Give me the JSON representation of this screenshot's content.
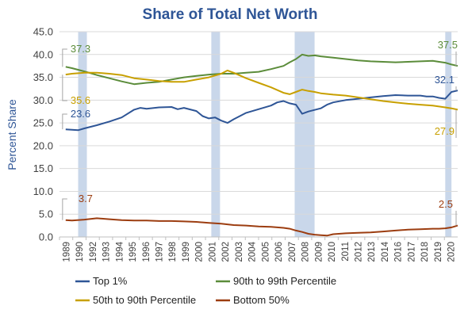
{
  "chart_data": {
    "type": "line",
    "title": "Share of Total Net Worth",
    "ylabel": "Percent Share",
    "xlabel": "",
    "ylim": [
      0,
      45
    ],
    "yticks": [
      "0.0",
      "5.0",
      "10.0",
      "15.0",
      "20.0",
      "25.0",
      "30.0",
      "35.0",
      "40.0",
      "45.0"
    ],
    "xlim": [
      1989.0,
      2021.0
    ],
    "xticks": [
      "1989",
      "1990",
      "1992",
      "1993",
      "1994",
      "1995",
      "1996",
      "1997",
      "1998",
      "1999",
      "2000",
      "2001",
      "2002",
      "2003",
      "2004",
      "2005",
      "2006",
      "2007",
      "2008",
      "2009",
      "2010",
      "2011",
      "2012",
      "2013",
      "2014",
      "2016",
      "2017",
      "2018",
      "2019",
      "2020"
    ],
    "grid": "horizontal",
    "legend_position": "bottom",
    "recessions": [
      [
        1990.5,
        1991.2
      ],
      [
        2001.2,
        2001.9
      ],
      [
        2007.9,
        2009.5
      ],
      [
        2020.0,
        2020.5
      ]
    ],
    "series": [
      {
        "name": "Top 1%",
        "color": "#2e5596",
        "points": [
          [
            1989.5,
            23.6
          ],
          [
            1990,
            23.5
          ],
          [
            1990.5,
            23.4
          ],
          [
            1991,
            23.8
          ],
          [
            1992,
            24.5
          ],
          [
            1993,
            25.3
          ],
          [
            1994,
            26.2
          ],
          [
            1995,
            27.9
          ],
          [
            1995.5,
            28.3
          ],
          [
            1996,
            28.1
          ],
          [
            1997,
            28.4
          ],
          [
            1998,
            28.5
          ],
          [
            1998.5,
            28.0
          ],
          [
            1999,
            28.3
          ],
          [
            2000,
            27.6
          ],
          [
            2000.5,
            26.5
          ],
          [
            2001,
            26.0
          ],
          [
            2001.5,
            26.2
          ],
          [
            2002,
            25.5
          ],
          [
            2002.5,
            25.0
          ],
          [
            2003,
            25.8
          ],
          [
            2004,
            27.2
          ],
          [
            2005,
            28.0
          ],
          [
            2006,
            28.8
          ],
          [
            2006.5,
            29.5
          ],
          [
            2007,
            29.8
          ],
          [
            2007.5,
            29.3
          ],
          [
            2008,
            29.0
          ],
          [
            2008.5,
            27.0
          ],
          [
            2009,
            27.5
          ],
          [
            2010,
            28.2
          ],
          [
            2010.5,
            29.0
          ],
          [
            2011,
            29.5
          ],
          [
            2012,
            30.0
          ],
          [
            2013,
            30.3
          ],
          [
            2014,
            30.6
          ],
          [
            2015,
            30.9
          ],
          [
            2016,
            31.1
          ],
          [
            2017,
            31.0
          ],
          [
            2018,
            31.0
          ],
          [
            2018.5,
            30.8
          ],
          [
            2019,
            30.8
          ],
          [
            2019.5,
            30.5
          ],
          [
            2020,
            30.3
          ],
          [
            2020.5,
            31.8
          ],
          [
            2021,
            32.1
          ]
        ]
      },
      {
        "name": "90th to 99th Percentile",
        "color": "#5b8c3a",
        "points": [
          [
            1989.5,
            37.3
          ],
          [
            1990,
            37.0
          ],
          [
            1991,
            36.3
          ],
          [
            1992,
            35.5
          ],
          [
            1993,
            34.8
          ],
          [
            1994,
            34.1
          ],
          [
            1995,
            33.5
          ],
          [
            1996,
            33.8
          ],
          [
            1997,
            34.0
          ],
          [
            1998,
            34.5
          ],
          [
            1999,
            35.0
          ],
          [
            2000,
            35.3
          ],
          [
            2001,
            35.6
          ],
          [
            2002,
            35.8
          ],
          [
            2003,
            35.8
          ],
          [
            2004,
            36.0
          ],
          [
            2005,
            36.2
          ],
          [
            2006,
            36.8
          ],
          [
            2007,
            37.5
          ],
          [
            2007.5,
            38.3
          ],
          [
            2008,
            39.0
          ],
          [
            2008.5,
            40.0
          ],
          [
            2009,
            39.7
          ],
          [
            2009.5,
            39.8
          ],
          [
            2010,
            39.6
          ],
          [
            2011,
            39.3
          ],
          [
            2012,
            39.0
          ],
          [
            2013,
            38.7
          ],
          [
            2014,
            38.5
          ],
          [
            2015,
            38.4
          ],
          [
            2016,
            38.3
          ],
          [
            2017,
            38.4
          ],
          [
            2018,
            38.5
          ],
          [
            2019,
            38.6
          ],
          [
            2019.5,
            38.4
          ],
          [
            2020,
            38.2
          ],
          [
            2020.5,
            37.8
          ],
          [
            2021,
            37.5
          ]
        ]
      },
      {
        "name": "50th to 90th Percentile",
        "color": "#c8a000",
        "points": [
          [
            1989.5,
            35.6
          ],
          [
            1990,
            35.8
          ],
          [
            1991,
            36.0
          ],
          [
            1992,
            36.0
          ],
          [
            1993,
            35.8
          ],
          [
            1994,
            35.5
          ],
          [
            1995,
            34.8
          ],
          [
            1996,
            34.5
          ],
          [
            1997,
            34.2
          ],
          [
            1998,
            34.0
          ],
          [
            1999,
            34.0
          ],
          [
            2000,
            34.5
          ],
          [
            2001,
            35.0
          ],
          [
            2002,
            35.8
          ],
          [
            2002.5,
            36.5
          ],
          [
            2003,
            36.0
          ],
          [
            2004,
            34.8
          ],
          [
            2005,
            33.8
          ],
          [
            2006,
            32.8
          ],
          [
            2007,
            31.6
          ],
          [
            2007.5,
            31.3
          ],
          [
            2008,
            31.8
          ],
          [
            2008.5,
            32.3
          ],
          [
            2009,
            32.0
          ],
          [
            2009.5,
            31.8
          ],
          [
            2010,
            31.5
          ],
          [
            2011,
            31.2
          ],
          [
            2012,
            31.0
          ],
          [
            2013,
            30.6
          ],
          [
            2014,
            30.2
          ],
          [
            2015,
            29.8
          ],
          [
            2016,
            29.5
          ],
          [
            2017,
            29.2
          ],
          [
            2018,
            29.0
          ],
          [
            2019,
            28.8
          ],
          [
            2019.5,
            28.6
          ],
          [
            2020,
            28.4
          ],
          [
            2020.5,
            28.2
          ],
          [
            2021,
            27.9
          ]
        ]
      },
      {
        "name": "Bottom 50%",
        "color": "#9c3d10",
        "points": [
          [
            1989.5,
            3.7
          ],
          [
            1990,
            3.6
          ],
          [
            1991,
            3.8
          ],
          [
            1992,
            4.1
          ],
          [
            1993,
            3.9
          ],
          [
            1994,
            3.7
          ],
          [
            1995,
            3.6
          ],
          [
            1996,
            3.6
          ],
          [
            1997,
            3.5
          ],
          [
            1998,
            3.5
          ],
          [
            1999,
            3.4
          ],
          [
            2000,
            3.3
          ],
          [
            2001,
            3.1
          ],
          [
            2002,
            2.9
          ],
          [
            2003,
            2.6
          ],
          [
            2004,
            2.5
          ],
          [
            2005,
            2.3
          ],
          [
            2006,
            2.2
          ],
          [
            2007,
            2.0
          ],
          [
            2007.5,
            1.8
          ],
          [
            2008,
            1.4
          ],
          [
            2008.5,
            1.1
          ],
          [
            2009,
            0.7
          ],
          [
            2009.5,
            0.5
          ],
          [
            2010,
            0.4
          ],
          [
            2010.5,
            0.3
          ],
          [
            2011,
            0.6
          ],
          [
            2012,
            0.8
          ],
          [
            2013,
            0.9
          ],
          [
            2014,
            1.0
          ],
          [
            2015,
            1.2
          ],
          [
            2016,
            1.4
          ],
          [
            2017,
            1.6
          ],
          [
            2018,
            1.7
          ],
          [
            2019,
            1.8
          ],
          [
            2019.5,
            1.8
          ],
          [
            2020,
            1.9
          ],
          [
            2020.5,
            2.1
          ],
          [
            2021,
            2.5
          ]
        ]
      }
    ],
    "annotations": [
      {
        "text": "37.3",
        "series": 1
      },
      {
        "text": "35.6",
        "series": 2
      },
      {
        "text": "23.6",
        "series": 0
      },
      {
        "text": "3.7",
        "series": 3
      },
      {
        "text": "37.5",
        "series": 1
      },
      {
        "text": "32.1",
        "series": 0
      },
      {
        "text": "27.9",
        "series": 2
      },
      {
        "text": "2.5",
        "series": 3
      }
    ]
  }
}
